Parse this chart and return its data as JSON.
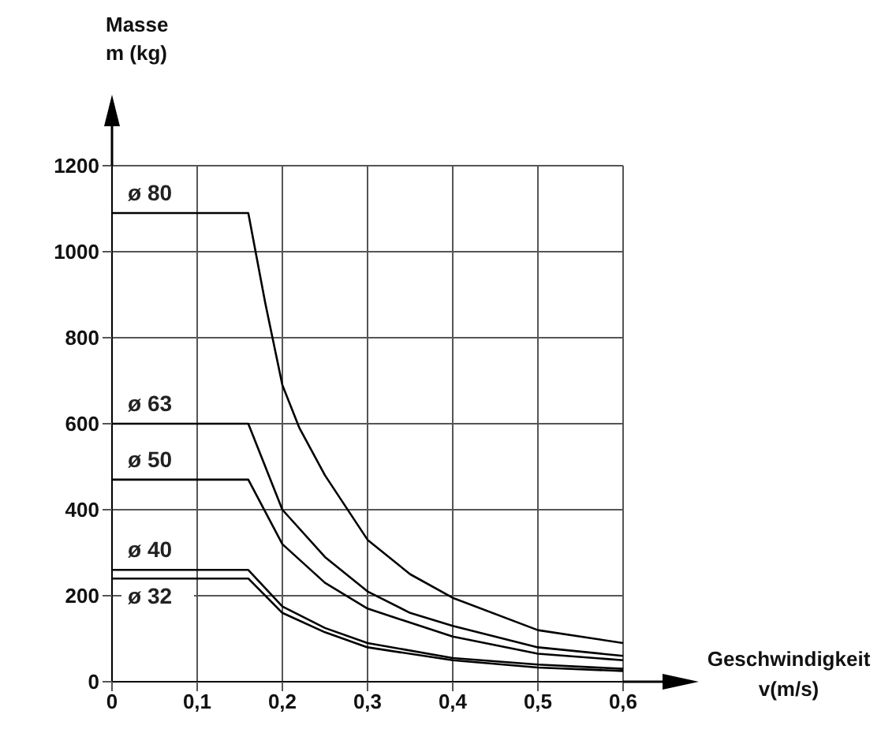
{
  "chart_data": {
    "type": "line",
    "xlabel": "Geschwindigkeit\nv(m/s)",
    "ylabel": "Masse\nm (kg)",
    "xlim": [
      0,
      0.6
    ],
    "xticks": [
      0,
      {
        "value": 0.1,
        "label": "0,1"
      },
      {
        "value": 0.2,
        "label": "0,2"
      },
      {
        "value": 0.3,
        "label": "0,3"
      },
      {
        "value": 0.4,
        "label": "0,4"
      },
      {
        "value": 0.5,
        "label": "0,5"
      },
      {
        "value": 0.6,
        "label": "0,6"
      }
    ],
    "ylim": [
      0,
      1200
    ],
    "yticks": [
      0,
      200,
      400,
      600,
      800,
      1000,
      1200
    ],
    "grid": true,
    "marker": "none",
    "line_style": "solid",
    "series": [
      {
        "name": "ø 80",
        "color": "#000000",
        "x": [
          0,
          0.16,
          0.18,
          0.2,
          0.22,
          0.25,
          0.3,
          0.35,
          0.4,
          0.5,
          0.6
        ],
        "values": [
          1090,
          1090,
          880,
          690,
          590,
          480,
          330,
          250,
          195,
          120,
          90
        ]
      },
      {
        "name": "ø 63",
        "color": "#000000",
        "x": [
          0,
          0.16,
          0.2,
          0.25,
          0.3,
          0.35,
          0.4,
          0.5,
          0.6
        ],
        "values": [
          600,
          600,
          400,
          290,
          210,
          160,
          130,
          80,
          60
        ]
      },
      {
        "name": "ø 50",
        "color": "#000000",
        "x": [
          0,
          0.16,
          0.2,
          0.25,
          0.3,
          0.4,
          0.5,
          0.6
        ],
        "values": [
          470,
          470,
          320,
          230,
          170,
          105,
          65,
          50
        ]
      },
      {
        "name": "ø 40",
        "color": "#000000",
        "x": [
          0,
          0.16,
          0.2,
          0.25,
          0.3,
          0.4,
          0.5,
          0.6
        ],
        "values": [
          260,
          260,
          175,
          125,
          90,
          55,
          40,
          30
        ]
      },
      {
        "name": "ø 32",
        "color": "#000000",
        "x": [
          0,
          0.16,
          0.2,
          0.25,
          0.3,
          0.4,
          0.5,
          0.6
        ],
        "values": [
          240,
          240,
          160,
          115,
          80,
          50,
          33,
          25
        ]
      }
    ]
  }
}
